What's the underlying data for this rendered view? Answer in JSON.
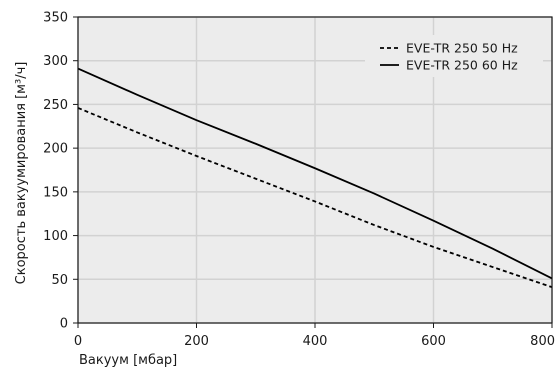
{
  "chart_data": {
    "type": "line",
    "xlabel": "Вакуум [мбар]",
    "ylabel": "Скорость вакуумирования [м³/ч]",
    "xlim": [
      0,
      800
    ],
    "ylim": [
      0,
      350
    ],
    "x_ticks": [
      0,
      200,
      400,
      600,
      800
    ],
    "y_ticks": [
      0,
      50,
      100,
      150,
      200,
      250,
      300,
      350
    ],
    "grid": true,
    "legend_position": "top-right",
    "background_color": "#ececec",
    "grid_color": "#d2d2d2",
    "series": [
      {
        "name": "EVE-TR 250 50 Hz",
        "style": "dashed",
        "color": "#000000",
        "x": [
          0,
          100,
          200,
          300,
          400,
          500,
          600,
          700,
          800
        ],
        "y": [
          246,
          218,
          191,
          165,
          139,
          112,
          87,
          64,
          41
        ]
      },
      {
        "name": "EVE-TR 250 60 Hz",
        "style": "solid",
        "color": "#000000",
        "x": [
          0,
          100,
          200,
          300,
          400,
          500,
          600,
          700,
          800
        ],
        "y": [
          291,
          261,
          232,
          205,
          177,
          148,
          117,
          85,
          51
        ]
      }
    ]
  }
}
